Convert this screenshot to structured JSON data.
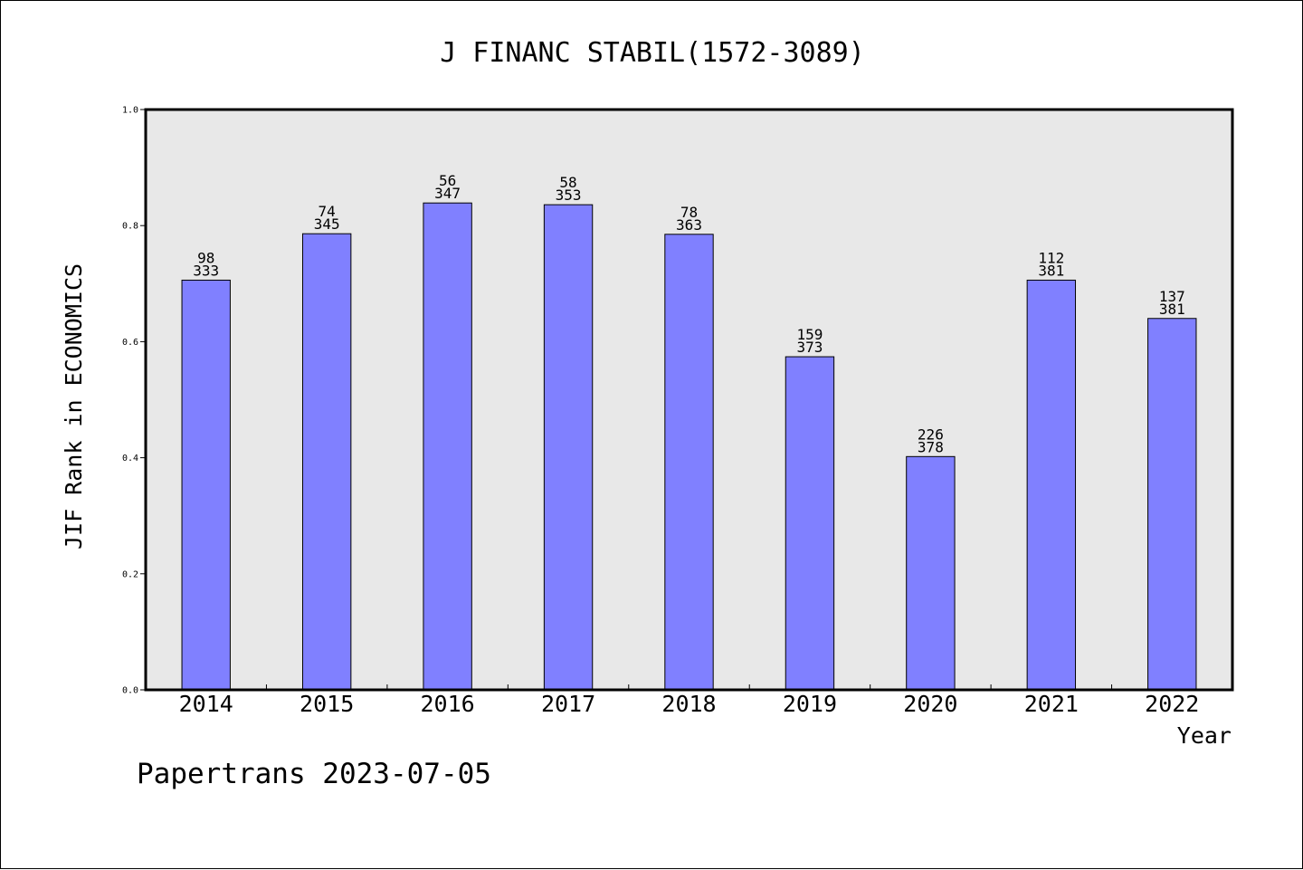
{
  "chart_data": {
    "type": "bar",
    "title": "J FINANC STABIL(1572-3089)",
    "xlabel": "Year",
    "ylabel": "JIF Rank in ECONOMICS",
    "ylim": [
      0,
      1.0
    ],
    "yticks": [
      "0.0",
      "0.2",
      "0.4",
      "0.6",
      "0.8",
      "1.0"
    ],
    "categories": [
      "2014",
      "2015",
      "2016",
      "2017",
      "2018",
      "2019",
      "2020",
      "2021",
      "2022"
    ],
    "values": [
      0.706,
      0.786,
      0.839,
      0.836,
      0.785,
      0.574,
      0.402,
      0.706,
      0.64
    ],
    "rank": [
      "98",
      "74",
      "56",
      "58",
      "78",
      "159",
      "226",
      "112",
      "137"
    ],
    "total": [
      "333",
      "345",
      "347",
      "353",
      "363",
      "373",
      "378",
      "381",
      "381"
    ],
    "bar_color": "#8080ff",
    "background_color": "#e8e8e8",
    "grid": false,
    "legend": "none"
  },
  "footer": "Papertrans 2023-07-05"
}
